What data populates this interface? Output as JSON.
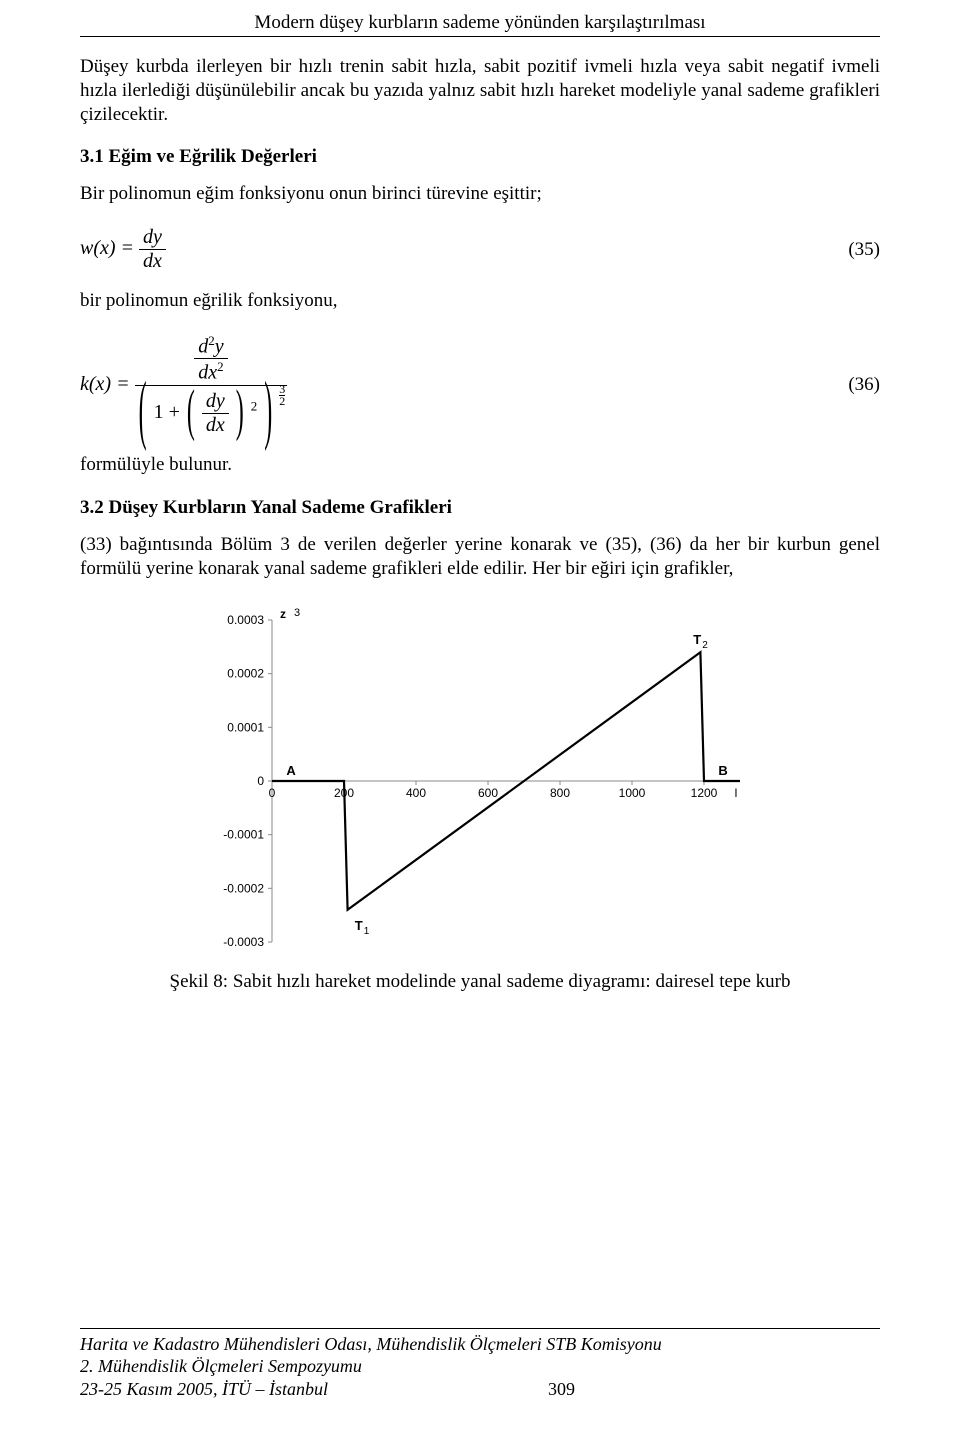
{
  "header": {
    "running_title": "Modern düşey kurbların sademe yönünden karşılaştırılması"
  },
  "paragraphs": {
    "intro": "Düşey kurbda ilerleyen bir hızlı trenin sabit hızla, sabit pozitif ivmeli hızla veya sabit negatif ivmeli hızla ilerlediği düşünülebilir ancak bu yazıda yalnız sabit hızlı hareket modeliyle yanal sademe grafikleri çizilecektir.",
    "poly_intro": "Bir polinomun eğim fonksiyonu onun birinci türevine eşittir;",
    "poly_curv": "bir polinomun eğrilik fonksiyonu,",
    "formula_end": "formülüyle bulunur.",
    "sec32_body": "(33) bağıntısında Bölüm 3 de verilen değerler yerine konarak ve (35), (36) da her bir kurbun genel formülü yerine konarak yanal sademe grafikleri elde edilir. Her bir eğiri için grafikler,"
  },
  "sections": {
    "s31": "3.1 Eğim ve Eğrilik Değerleri",
    "s32": "3.2 Düşey Kurbların Yanal Sademe Grafikleri"
  },
  "equations": {
    "e35": {
      "lhs": "w(x) =",
      "num": "dy",
      "den": "dx",
      "tag": "(35)"
    },
    "e36": {
      "lhs": "k(x) =",
      "top_num": "d",
      "top_sup": "2",
      "top_y": "y",
      "top_den_d": "dx",
      "top_den_sup": "2",
      "bottom_inner_num": "dy",
      "bottom_inner_den": "dx",
      "one_plus": "1 +",
      "inner_sq": "2",
      "outer_exp_num": "3",
      "outer_exp_den": "2",
      "tag": "(36)"
    }
  },
  "chart": {
    "type": "line",
    "axis_labels": {
      "y_top": "z",
      "y_top_right": "3"
    },
    "point_labels": {
      "A": "A",
      "B": "B",
      "T1": "T",
      "T1_sub": "1",
      "T2": "T",
      "T2_sub": "2"
    },
    "x_ticks": [
      0,
      200,
      400,
      600,
      800,
      1000,
      1200
    ],
    "y_ticks": [
      0.0003,
      0.0002,
      0.0001,
      0,
      -0.0001,
      -0.0002,
      -0.0003
    ],
    "y_tick_labels": [
      "0.0003",
      "0.0002",
      "0.0001",
      "0",
      "-0.0001",
      "-0.0002",
      "-0.0003"
    ],
    "xlim": [
      0,
      1300
    ],
    "ylim": [
      -0.0003,
      0.0003
    ],
    "series_x": [
      0,
      200,
      210,
      1190,
      1200,
      1300
    ],
    "series_y": [
      0,
      0,
      -0.00024,
      0.00024,
      0,
      0
    ],
    "line_color": "#000000",
    "line_width": 2.2,
    "axis_color": "#8a8a8a",
    "tick_font_size": 12,
    "background_color": "#ffffff",
    "x_axis_end_tick": "l"
  },
  "caption": {
    "fig8": "Şekil 8: Sabit hızlı hareket modelinde yanal sademe diyagramı: dairesel tepe kurb"
  },
  "footer": {
    "line1": "Harita ve Kadastro Mühendisleri Odası, Mühendislik Ölçmeleri STB Komisyonu",
    "line2": "2. Mühendislik Ölçmeleri Sempozyumu",
    "line3_left": "23-25 Kasım 2005, İTÜ – İstanbul",
    "page_number": "309"
  }
}
